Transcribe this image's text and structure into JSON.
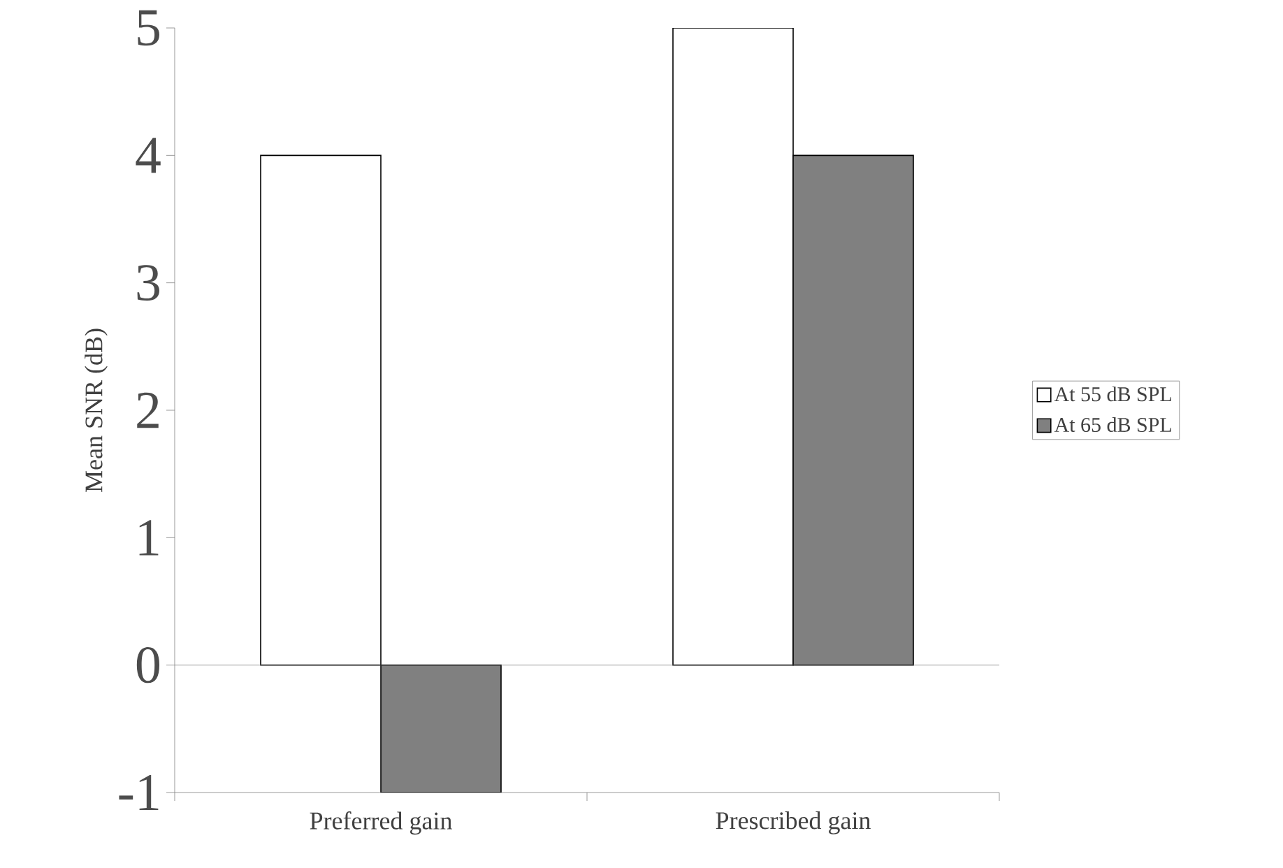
{
  "chart_data": {
    "type": "bar",
    "ylabel": "Mean SNR (dB)",
    "categories": [
      "Preferred gain",
      "Prescribed gain"
    ],
    "series": [
      {
        "name": "At 55 dB SPL",
        "color": "#ffffff",
        "values": [
          4,
          5
        ]
      },
      {
        "name": "At 65 dB SPL",
        "color": "#808080",
        "values": [
          -1,
          4
        ]
      }
    ],
    "ylim": [
      -1,
      5
    ],
    "yticks": [
      -1,
      0,
      1,
      2,
      3,
      4,
      5
    ],
    "legend": "right"
  }
}
